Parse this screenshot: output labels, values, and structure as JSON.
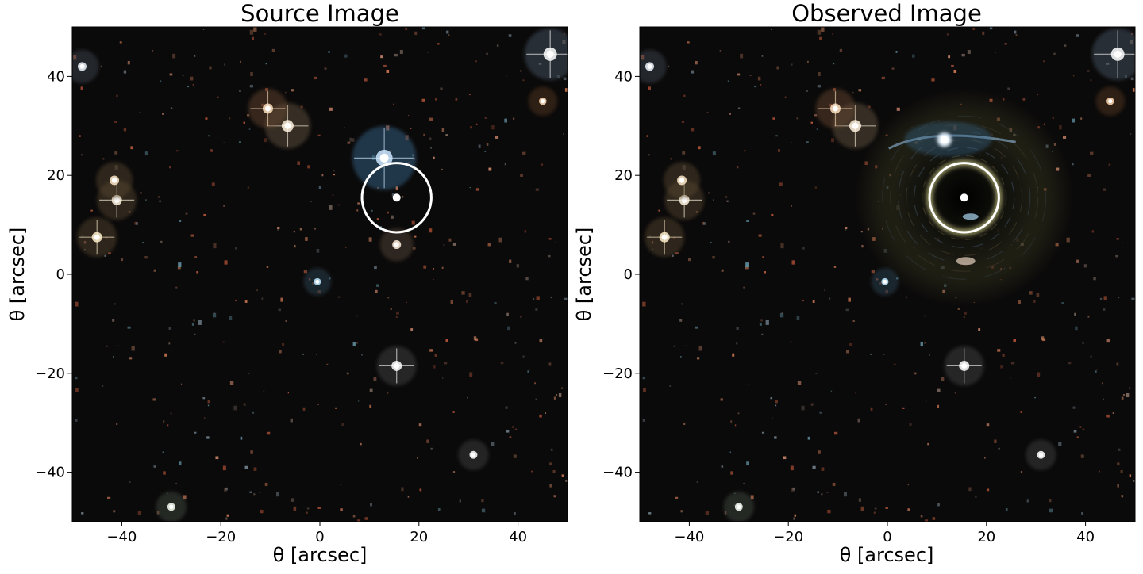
{
  "figure": {
    "panels": [
      {
        "id": "source",
        "title": "Source Image",
        "xlabel": "θ   [arcsec]",
        "ylabel": "θ   [arcsec]",
        "xlim": [
          -50,
          50
        ],
        "ylim": [
          -50,
          50
        ],
        "xticks": [
          -40,
          -20,
          0,
          20,
          40
        ],
        "yticks": [
          -40,
          -20,
          0,
          20,
          40
        ],
        "background": "#0b0a0a",
        "lensed": false,
        "marker": {
          "x": 15.5,
          "y": 15.5,
          "color": "#ffffff"
        },
        "circle": {
          "cx": 15.5,
          "cy": 15.5,
          "r": 7,
          "color": "#ffffff"
        }
      },
      {
        "id": "observed",
        "title": "Observed Image",
        "xlabel": "θ   [arcsec]",
        "ylabel": "θ   [arcsec]",
        "xlim": [
          -50,
          50
        ],
        "ylim": [
          -50,
          50
        ],
        "xticks": [
          -40,
          -20,
          0,
          20,
          40
        ],
        "yticks": [
          -40,
          -20,
          0,
          20,
          40
        ],
        "background": "#0b0a0a",
        "lensed": true,
        "marker": {
          "x": 15.5,
          "y": 15.5,
          "color": "#ffffff"
        },
        "circle": {
          "cx": 15.5,
          "cy": 15.5,
          "r": 7,
          "color": "#ffffff",
          "glow": "#f3f0a0"
        }
      }
    ],
    "bright_stars": [
      {
        "x": 13,
        "y": 23.5,
        "m": 1.6,
        "color": "#cfe8ff",
        "spikes": true,
        "halo": "#3b6e96"
      },
      {
        "x": 46.5,
        "y": 44.5,
        "m": 1.2,
        "color": "#ffffff",
        "spikes": true,
        "halo": "#4a5a6a"
      },
      {
        "x": -6.5,
        "y": 30,
        "m": 1.0,
        "color": "#fff3df",
        "spikes": true,
        "halo": "#6a5a44"
      },
      {
        "x": -10.5,
        "y": 33.5,
        "m": 0.8,
        "color": "#ffe2c0",
        "spikes": true,
        "halo": "#6a4a30"
      },
      {
        "x": -45,
        "y": 7.5,
        "m": 0.8,
        "color": "#fff0cc",
        "spikes": true,
        "halo": "#5a4a30"
      },
      {
        "x": -41,
        "y": 15,
        "m": 0.8,
        "color": "#fff6e0",
        "spikes": true,
        "halo": "#5a4a30"
      },
      {
        "x": -41.5,
        "y": 19,
        "m": 0.7,
        "color": "#ffe7c8",
        "spikes": false,
        "halo": "#5a4a30"
      },
      {
        "x": -48,
        "y": 42,
        "m": 0.6,
        "color": "#eef6ff",
        "spikes": false,
        "halo": "#404a55"
      },
      {
        "x": 15.5,
        "y": -18.5,
        "m": 0.8,
        "color": "#ffffff",
        "spikes": true,
        "halo": "#4a4a4a"
      },
      {
        "x": 15.5,
        "y": 6,
        "m": 0.6,
        "color": "#ffeedd",
        "spikes": false,
        "halo": "#5a4a3a"
      },
      {
        "x": 31,
        "y": -36.5,
        "m": 0.5,
        "color": "#ffffff",
        "spikes": false,
        "halo": "#444444"
      },
      {
        "x": -30,
        "y": -47,
        "m": 0.5,
        "color": "#f5fff0",
        "spikes": false,
        "halo": "#445044"
      },
      {
        "x": -0.5,
        "y": -1.5,
        "m": 0.4,
        "color": "#bfe9ff",
        "spikes": false,
        "halo": "#2e4a5a"
      },
      {
        "x": 45,
        "y": 35,
        "m": 0.45,
        "color": "#ffd8b0",
        "spikes": false,
        "halo": "#5a3a24"
      }
    ],
    "faint_source_count": 420
  }
}
